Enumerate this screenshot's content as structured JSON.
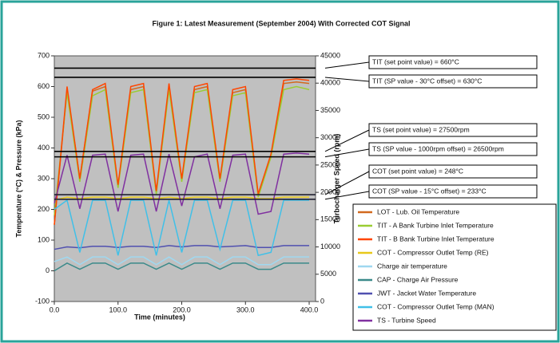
{
  "chart_data": {
    "type": "line",
    "title": "Figure 1: Latest Measurement (September 2004) With Corrected COT Signal",
    "x_label": "Time (minutes)",
    "y_label": "Temperature (°C) & Pressure (kPa)",
    "y2_label": "Turbocharger Speed (rpm)",
    "x": [
      0,
      20,
      40,
      60,
      80,
      100,
      120,
      140,
      160,
      180,
      200,
      220,
      240,
      260,
      280,
      300,
      320,
      340,
      360,
      380,
      400
    ],
    "xlim": [
      0,
      410
    ],
    "xticks": [
      {
        "value": 0,
        "label": "0.0"
      },
      {
        "value": 100,
        "label": "100.0"
      },
      {
        "value": 200,
        "label": "200.0"
      },
      {
        "value": 300,
        "label": "300.0"
      },
      {
        "value": 400,
        "label": "400.0"
      }
    ],
    "ylim": [
      -100,
      700
    ],
    "yticks": [
      -100,
      0,
      100,
      200,
      300,
      400,
      500,
      600,
      700
    ],
    "y2lim": [
      0,
      45000
    ],
    "y2ticks": [
      0,
      5000,
      10000,
      15000,
      20000,
      25000,
      30000,
      35000,
      40000,
      45000
    ],
    "grid": false,
    "legend_position": "lower right",
    "series": [
      {
        "name": "LOT - Lub. Oil Temperature",
        "color": "#d2691e",
        "values": [
          150,
          590,
          300,
          585,
          600,
          275,
          590,
          600,
          255,
          600,
          295,
          590,
          600,
          295,
          580,
          590,
          245,
          375,
          610,
          615,
          610
        ]
      },
      {
        "name": "TIT - A Bank Turbine Inlet Temperature",
        "color": "#9acd32",
        "values": [
          180,
          580,
          290,
          570,
          590,
          270,
          580,
          590,
          250,
          590,
          290,
          580,
          590,
          290,
          570,
          580,
          240,
          370,
          590,
          600,
          590
        ]
      },
      {
        "name": "TIT - B Bank Turbine Inlet Temperature",
        "color": "#ff4500",
        "values": [
          150,
          600,
          300,
          590,
          610,
          280,
          600,
          610,
          260,
          610,
          300,
          600,
          610,
          300,
          590,
          600,
          250,
          380,
          620,
          625,
          620
        ]
      },
      {
        "name": "COT - Compressor Outlet Temp (RE)",
        "color": "#e8c81a",
        "values": [
          230,
          240,
          235,
          240,
          240,
          235,
          240,
          240,
          235,
          240,
          235,
          240,
          240,
          235,
          240,
          240,
          235,
          235,
          240,
          240,
          240
        ]
      },
      {
        "name": "Charge air temperature",
        "color": "#9fd8f0",
        "values": [
          30,
          45,
          20,
          45,
          45,
          20,
          45,
          45,
          20,
          45,
          20,
          45,
          45,
          20,
          45,
          45,
          20,
          20,
          45,
          45,
          45
        ]
      },
      {
        "name": "CAP - Charge Air Pressure",
        "color": "#3a8a8a",
        "values": [
          0,
          25,
          5,
          25,
          25,
          5,
          25,
          25,
          5,
          25,
          5,
          25,
          25,
          5,
          25,
          25,
          5,
          5,
          25,
          25,
          25
        ]
      },
      {
        "name": "JWT - Jacket Water Temperature",
        "color": "#5050b0",
        "values": [
          70,
          78,
          75,
          80,
          80,
          76,
          80,
          80,
          76,
          82,
          78,
          82,
          82,
          78,
          80,
          82,
          76,
          76,
          82,
          82,
          82
        ]
      },
      {
        "name": "COT - Compressor Outlet Temp (MAN)",
        "color": "#40c0e8",
        "values": [
          200,
          230,
          60,
          230,
          230,
          50,
          230,
          230,
          50,
          230,
          60,
          230,
          230,
          70,
          230,
          230,
          50,
          60,
          230,
          230,
          230
        ]
      },
      {
        "name": "TS - Turbine Speed",
        "color": "#8030a0",
        "axis": "y2",
        "values": [
          18000,
          26800,
          17000,
          26800,
          27000,
          16500,
          26800,
          27000,
          16500,
          27000,
          17500,
          26500,
          27000,
          17000,
          26800,
          27000,
          16000,
          16500,
          27000,
          27200,
          27000
        ]
      }
    ],
    "reference_lines": [
      {
        "label": "TIT (set point value) = 660°C",
        "value": 660
      },
      {
        "label": "TIT (SP value - 30°C offset) = 630°C",
        "value": 630
      },
      {
        "label": "TS (set point value) = 27500rpm",
        "value": 27500,
        "axis": "y2"
      },
      {
        "label": "TS (SP value - 1000rpm offset) = 26500rpm",
        "value": 26500,
        "axis": "y2"
      },
      {
        "label": "COT (set point value) = 248°C",
        "value": 248
      },
      {
        "label": "COT (SP value - 15°C offset) = 233°C",
        "value": 233
      }
    ]
  }
}
